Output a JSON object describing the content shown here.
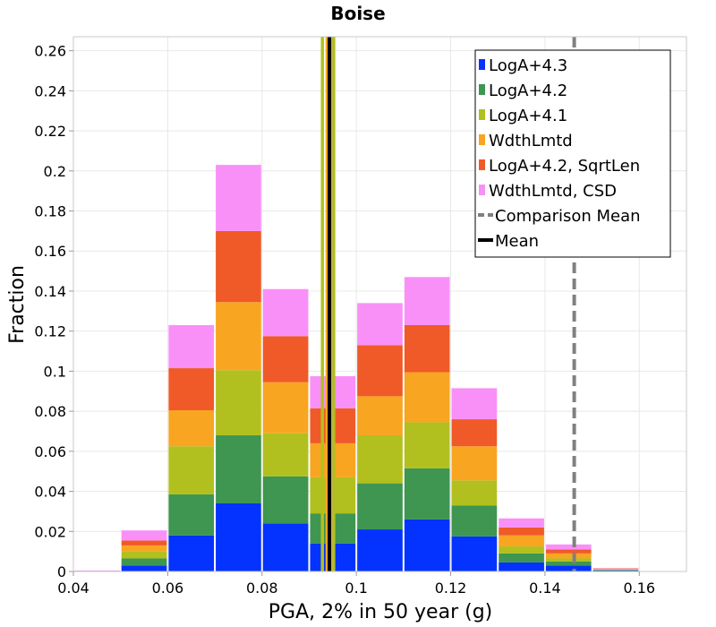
{
  "chart_data": {
    "type": "bar",
    "stacked": true,
    "title": "Boise",
    "xlabel": "PGA, 2% in 50 year (g)",
    "ylabel": "Fraction",
    "xlim": [
      0.04,
      0.17
    ],
    "ylim": [
      0,
      0.267
    ],
    "xticks": [
      "0.04",
      "0.06",
      "0.08",
      "0.1",
      "0.12",
      "0.14",
      "0.16"
    ],
    "xtick_values": [
      0.04,
      0.06,
      0.08,
      0.1,
      0.12,
      0.14,
      0.16
    ],
    "yticks": [
      "0",
      "0.02",
      "0.04",
      "0.06",
      "0.08",
      "0.1",
      "0.12",
      "0.14",
      "0.16",
      "0.18",
      "0.2",
      "0.22",
      "0.24",
      "0.26"
    ],
    "ytick_values": [
      0,
      0.02,
      0.04,
      0.06,
      0.08,
      0.1,
      0.12,
      0.14,
      0.16,
      0.18,
      0.2,
      0.22,
      0.24,
      0.26
    ],
    "grid": true,
    "legend_position": "top-right",
    "bin_width": 0.01,
    "bin_centers": [
      0.045,
      0.055,
      0.065,
      0.075,
      0.085,
      0.095,
      0.105,
      0.115,
      0.125,
      0.135,
      0.145,
      0.155
    ],
    "series": [
      {
        "name": "LogA+4.3",
        "color": "#0433ff",
        "values": [
          0,
          0.003,
          0.018,
          0.034,
          0.024,
          0.014,
          0.021,
          0.026,
          0.0175,
          0.0045,
          0.003,
          0.0005
        ]
      },
      {
        "name": "LogA+4.2",
        "color": "#3e9651",
        "values": [
          0,
          0.0035,
          0.0205,
          0.034,
          0.0235,
          0.015,
          0.023,
          0.0255,
          0.0155,
          0.0045,
          0.002,
          0.0003
        ]
      },
      {
        "name": "LogA+4.1",
        "color": "#b1c01e",
        "values": [
          0,
          0.0035,
          0.024,
          0.0325,
          0.0215,
          0.018,
          0.024,
          0.023,
          0.0125,
          0.0035,
          0.0015,
          0.0002
        ]
      },
      {
        "name": "WdthLmtd",
        "color": "#f8a521",
        "values": [
          0,
          0.003,
          0.018,
          0.034,
          0.0255,
          0.017,
          0.0195,
          0.025,
          0.017,
          0.0055,
          0.0025,
          0.0003
        ]
      },
      {
        "name": "LogA+4.2, SqrtLen",
        "color": "#f05a28",
        "values": [
          0.0002,
          0.0025,
          0.021,
          0.0355,
          0.023,
          0.0175,
          0.0255,
          0.0235,
          0.0135,
          0.004,
          0.002,
          0.0002
        ]
      },
      {
        "name": "WdthLmtd, CSD",
        "color": "#f990f8",
        "values": [
          0.0003,
          0.005,
          0.0215,
          0.033,
          0.0235,
          0.016,
          0.021,
          0.024,
          0.0155,
          0.0045,
          0.0025,
          0.0002
        ]
      }
    ],
    "lines": [
      {
        "name": "Comparison Mean",
        "x": 0.1462,
        "color": "#808080",
        "dash": true
      },
      {
        "name": "Mean",
        "x": 0.0943,
        "color": "#000000",
        "dash": false
      }
    ],
    "extra_vertical_lines": [
      {
        "x": 0.0928,
        "color": "#b1c01e"
      },
      {
        "x": 0.0938,
        "color": "#f8a521"
      },
      {
        "x": 0.0948,
        "color": "#f990f8"
      },
      {
        "x": 0.0952,
        "color": "#b1c01e"
      }
    ]
  }
}
